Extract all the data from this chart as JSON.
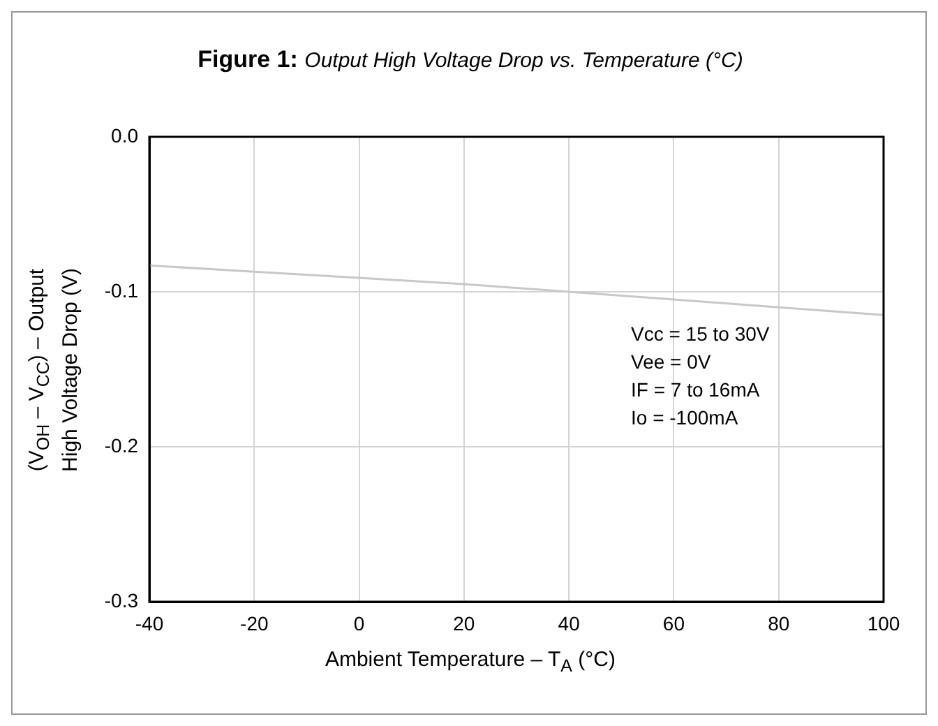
{
  "chart_data": {
    "type": "line",
    "title": "Figure 1:",
    "subtitle": "Output High Voltage Drop vs. Temperature (°C)",
    "xlabel": "Ambient Temperature – T$_{A}$ (°C)",
    "ylabel": "(V$_{OH}$ – V$_{CC}$) – Output\nHigh Voltage Drop (V)",
    "x": [
      -40,
      -20,
      0,
      20,
      40,
      60,
      80,
      100
    ],
    "series": [
      {
        "color": "#c8c8c8",
        "values": [
          -0.083,
          -0.087,
          -0.091,
          -0.095,
          -0.1,
          -0.105,
          -0.11,
          -0.115
        ]
      }
    ],
    "xlim": [
      -40,
      100
    ],
    "xticks": [
      -40,
      -20,
      0,
      20,
      40,
      60,
      80,
      100
    ],
    "ylim": [
      -0.3,
      0
    ],
    "yticks": [
      {
        "value": -0.3,
        "label": "-0.3"
      },
      {
        "value": -0.2,
        "label": "-0.2"
      },
      {
        "value": -0.1,
        "label": "-0.1"
      },
      {
        "value": 0,
        "label": "0.0"
      }
    ],
    "grid": true,
    "legend": false,
    "marker": "none",
    "line_style": "solid",
    "annotations": [
      "Vcc = 15 to 30V",
      "Vee = 0V",
      "IF = 7 to 16mA",
      "Io = -100mA"
    ]
  }
}
